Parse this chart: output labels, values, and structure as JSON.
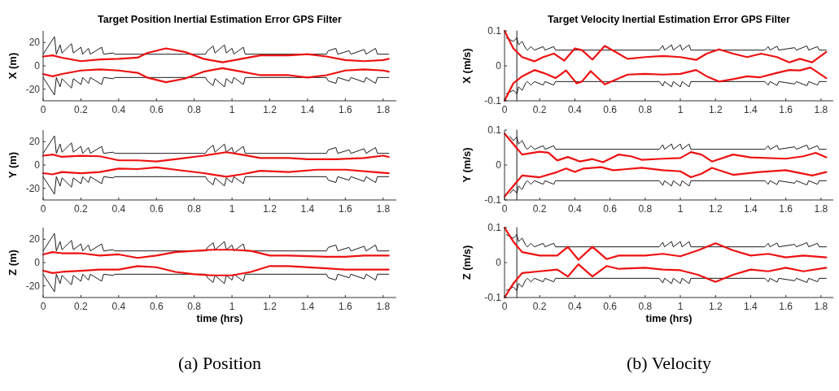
{
  "chart_data": [
    {
      "type": "line",
      "title": "Target Position Inertial Estimation Error GPS Filter",
      "ylabel": "X (m)",
      "xlim": [
        0,
        1.87
      ],
      "xticks": [
        0,
        0.2,
        0.4,
        0.6,
        0.8,
        1,
        1.2,
        1.4,
        1.6,
        1.8
      ],
      "ylim": [
        -30,
        30
      ],
      "yticks": [
        -20,
        0,
        20
      ],
      "series": [
        {
          "color": "#000000",
          "x": [
            0,
            0.06,
            0.07,
            0.09,
            0.1,
            0.15,
            0.16,
            0.2,
            0.21,
            0.24,
            0.25,
            0.31,
            0.32,
            0.37,
            0.38,
            0.86,
            0.87,
            0.9,
            0.91,
            0.96,
            0.97,
            1.0,
            1.01,
            1.06,
            1.07,
            1.5,
            1.51,
            1.55,
            1.56,
            1.62,
            1.63,
            1.7,
            1.71,
            1.76,
            1.77,
            1.83
          ],
          "values": [
            10,
            25,
            10,
            18,
            11,
            19,
            11,
            16,
            10,
            15,
            10,
            16,
            10,
            11,
            10,
            10,
            13,
            17,
            11,
            18,
            11,
            15,
            10,
            16,
            10,
            10,
            13,
            15,
            10,
            13,
            10,
            14,
            10,
            15,
            10,
            10
          ]
        },
        {
          "color": "#000000",
          "x": [
            0,
            0.06,
            0.07,
            0.09,
            0.1,
            0.15,
            0.16,
            0.2,
            0.21,
            0.24,
            0.25,
            0.31,
            0.32,
            0.37,
            0.38,
            0.86,
            0.87,
            0.9,
            0.91,
            0.96,
            0.97,
            1.0,
            1.01,
            1.06,
            1.07,
            1.5,
            1.51,
            1.55,
            1.56,
            1.62,
            1.63,
            1.7,
            1.71,
            1.76,
            1.77,
            1.83
          ],
          "values": [
            -10,
            -25,
            -10,
            -18,
            -11,
            -19,
            -11,
            -16,
            -10,
            -15,
            -10,
            -16,
            -10,
            -11,
            -10,
            -10,
            -13,
            -17,
            -11,
            -18,
            -11,
            -15,
            -10,
            -16,
            -10,
            -10,
            -13,
            -15,
            -10,
            -13,
            -10,
            -14,
            -10,
            -15,
            -10,
            -10
          ]
        },
        {
          "color": "#ee1111",
          "x": [
            0,
            0.05,
            0.1,
            0.2,
            0.3,
            0.4,
            0.5,
            0.55,
            0.65,
            0.75,
            0.85,
            0.95,
            1.05,
            1.15,
            1.3,
            1.4,
            1.5,
            1.6,
            1.7,
            1.8,
            1.83
          ],
          "values": [
            8,
            9,
            7,
            4,
            5.5,
            6,
            7,
            11,
            15,
            12,
            6,
            3,
            6,
            9,
            9,
            10,
            8,
            5,
            4,
            5,
            6
          ]
        },
        {
          "color": "#ee1111",
          "x": [
            0,
            0.05,
            0.1,
            0.2,
            0.3,
            0.4,
            0.5,
            0.55,
            0.65,
            0.75,
            0.85,
            0.95,
            1.05,
            1.15,
            1.3,
            1.4,
            1.5,
            1.6,
            1.7,
            1.8,
            1.83
          ],
          "values": [
            -7,
            -9,
            -7,
            -4,
            -3,
            -4,
            -6,
            -10,
            -14,
            -11,
            -5,
            -2,
            -5,
            -8,
            -8,
            -10,
            -8,
            -4,
            -3,
            -4,
            -5
          ]
        }
      ]
    },
    {
      "type": "line",
      "ylabel": "Y (m)",
      "xlim": [
        0,
        1.87
      ],
      "xticks": [
        0,
        0.2,
        0.4,
        0.6,
        0.8,
        1,
        1.2,
        1.4,
        1.6,
        1.8
      ],
      "ylim": [
        -30,
        30
      ],
      "yticks": [
        -20,
        0,
        20
      ],
      "series": [
        {
          "color": "#000000",
          "x": [
            0,
            0.06,
            0.07,
            0.09,
            0.1,
            0.15,
            0.16,
            0.2,
            0.21,
            0.24,
            0.25,
            0.31,
            0.32,
            0.37,
            0.38,
            0.86,
            0.87,
            0.9,
            0.91,
            0.96,
            0.97,
            1.0,
            1.01,
            1.06,
            1.07,
            1.5,
            1.51,
            1.55,
            1.56,
            1.62,
            1.63,
            1.7,
            1.71,
            1.76,
            1.77,
            1.83
          ],
          "values": [
            10,
            25,
            10,
            18,
            11,
            19,
            11,
            16,
            10,
            15,
            10,
            16,
            10,
            11,
            10,
            10,
            13,
            17,
            11,
            18,
            11,
            15,
            10,
            16,
            10,
            10,
            13,
            15,
            10,
            13,
            10,
            14,
            10,
            15,
            10,
            10
          ]
        },
        {
          "color": "#000000",
          "x": [
            0,
            0.06,
            0.07,
            0.09,
            0.1,
            0.15,
            0.16,
            0.2,
            0.21,
            0.24,
            0.25,
            0.31,
            0.32,
            0.37,
            0.38,
            0.86,
            0.87,
            0.9,
            0.91,
            0.96,
            0.97,
            1.0,
            1.01,
            1.06,
            1.07,
            1.5,
            1.51,
            1.55,
            1.56,
            1.62,
            1.63,
            1.7,
            1.71,
            1.76,
            1.77,
            1.83
          ],
          "values": [
            -10,
            -25,
            -10,
            -18,
            -11,
            -19,
            -11,
            -16,
            -10,
            -15,
            -10,
            -16,
            -10,
            -11,
            -10,
            -10,
            -13,
            -17,
            -11,
            -18,
            -11,
            -15,
            -10,
            -16,
            -10,
            -10,
            -13,
            -15,
            -10,
            -13,
            -10,
            -14,
            -10,
            -15,
            -10,
            -10
          ]
        },
        {
          "color": "#ee1111",
          "x": [
            0,
            0.05,
            0.1,
            0.2,
            0.3,
            0.4,
            0.5,
            0.6,
            0.7,
            0.85,
            0.97,
            1.05,
            1.15,
            1.3,
            1.4,
            1.55,
            1.7,
            1.8,
            1.83
          ],
          "values": [
            8,
            9,
            7,
            8,
            7.5,
            4,
            4,
            3,
            5,
            8,
            11,
            9,
            6,
            6,
            5,
            5,
            6,
            8,
            7
          ]
        },
        {
          "color": "#ee1111",
          "x": [
            0,
            0.05,
            0.1,
            0.2,
            0.3,
            0.4,
            0.5,
            0.6,
            0.7,
            0.85,
            0.97,
            1.05,
            1.15,
            1.3,
            1.45,
            1.6,
            1.75,
            1.83
          ],
          "values": [
            -7,
            -8,
            -6,
            -7,
            -6,
            -3,
            -3.5,
            -2,
            -4,
            -7,
            -10,
            -8,
            -5,
            -6,
            -4,
            -4,
            -6,
            -7
          ]
        }
      ]
    },
    {
      "type": "line",
      "ylabel": "Z (m)",
      "xlabel": "time (hrs)",
      "annotations": [
        "(a) Position"
      ],
      "xlim": [
        0,
        1.87
      ],
      "xticks": [
        0,
        0.2,
        0.4,
        0.6,
        0.8,
        1,
        1.2,
        1.4,
        1.6,
        1.8
      ],
      "ylim": [
        -30,
        30
      ],
      "yticks": [
        -20,
        0,
        20
      ],
      "series": [
        {
          "color": "#000000",
          "x": [
            0,
            0.06,
            0.07,
            0.09,
            0.1,
            0.15,
            0.16,
            0.2,
            0.21,
            0.24,
            0.25,
            0.31,
            0.32,
            0.37,
            0.38,
            0.86,
            0.87,
            0.9,
            0.91,
            0.96,
            0.97,
            1.0,
            1.01,
            1.06,
            1.07,
            1.5,
            1.51,
            1.55,
            1.56,
            1.62,
            1.63,
            1.7,
            1.71,
            1.76,
            1.77,
            1.83
          ],
          "values": [
            10,
            25,
            10,
            18,
            11,
            19,
            11,
            16,
            10,
            15,
            10,
            16,
            10,
            11,
            10,
            10,
            13,
            17,
            11,
            18,
            11,
            15,
            10,
            16,
            10,
            10,
            13,
            15,
            10,
            13,
            10,
            14,
            10,
            15,
            10,
            10
          ]
        },
        {
          "color": "#000000",
          "x": [
            0,
            0.06,
            0.07,
            0.09,
            0.1,
            0.15,
            0.16,
            0.2,
            0.21,
            0.24,
            0.25,
            0.31,
            0.32,
            0.37,
            0.38,
            0.86,
            0.87,
            0.9,
            0.91,
            0.96,
            0.97,
            1.0,
            1.01,
            1.06,
            1.07,
            1.5,
            1.51,
            1.55,
            1.56,
            1.62,
            1.63,
            1.7,
            1.71,
            1.76,
            1.77,
            1.83
          ],
          "values": [
            -10,
            -25,
            -10,
            -18,
            -11,
            -19,
            -11,
            -16,
            -10,
            -15,
            -10,
            -16,
            -10,
            -11,
            -10,
            -10,
            -13,
            -17,
            -11,
            -18,
            -11,
            -15,
            -10,
            -16,
            -10,
            -10,
            -13,
            -15,
            -10,
            -13,
            -10,
            -14,
            -10,
            -15,
            -10,
            -10
          ]
        },
        {
          "color": "#ee1111",
          "x": [
            0,
            0.05,
            0.1,
            0.2,
            0.3,
            0.4,
            0.5,
            0.6,
            0.7,
            0.8,
            0.9,
            1.0,
            1.1,
            1.2,
            1.3,
            1.5,
            1.6,
            1.7,
            1.83
          ],
          "values": [
            7,
            9,
            8,
            8,
            6,
            7,
            4,
            6,
            9,
            10,
            11,
            11,
            10,
            6,
            6,
            5,
            5,
            6,
            6
          ]
        },
        {
          "color": "#ee1111",
          "x": [
            0,
            0.05,
            0.1,
            0.2,
            0.3,
            0.4,
            0.5,
            0.6,
            0.7,
            0.8,
            0.9,
            1.0,
            1.1,
            1.2,
            1.3,
            1.5,
            1.6,
            1.7,
            1.83
          ],
          "values": [
            -7,
            -9,
            -8,
            -7,
            -6,
            -6,
            -3,
            -4,
            -8,
            -10,
            -11,
            -11,
            -8,
            -3,
            -3,
            -5,
            -6,
            -6,
            -6
          ]
        }
      ]
    },
    {
      "type": "line",
      "title": "Target Velocity Inertial Estimation Error GPS Filter",
      "ylabel": "X (m/s)",
      "xlim": [
        0,
        1.87
      ],
      "xticks": [
        0,
        0.2,
        0.4,
        0.6,
        0.8,
        1,
        1.2,
        1.4,
        1.6,
        1.8
      ],
      "ylim": [
        -0.1,
        0.1
      ],
      "yticks": [
        -0.1,
        0,
        0.1
      ],
      "series": [
        {
          "color": "#000000",
          "x": [
            0.07,
            0.07
          ],
          "values": [
            -0.1,
            0.1
          ]
        },
        {
          "color": "#000000",
          "x": [
            0.01,
            0.05,
            0.07,
            0.08,
            0.1,
            0.12,
            0.13,
            0.15,
            0.17,
            0.22,
            0.23,
            0.28,
            0.29,
            0.88,
            0.9,
            0.91,
            0.95,
            0.96,
            1.0,
            1.01,
            1.05,
            1.06,
            1.48,
            1.5,
            1.51,
            1.55,
            1.56,
            1.65,
            1.66,
            1.72,
            1.73,
            1.78,
            1.79,
            1.83
          ],
          "values": [
            0.08,
            0.07,
            0.08,
            0.06,
            0.07,
            0.05,
            0.045,
            0.055,
            0.045,
            0.055,
            0.045,
            0.055,
            0.045,
            0.045,
            0.058,
            0.045,
            0.06,
            0.045,
            0.06,
            0.045,
            0.06,
            0.045,
            0.045,
            0.055,
            0.045,
            0.056,
            0.045,
            0.052,
            0.045,
            0.057,
            0.045,
            0.055,
            0.045,
            0.045
          ]
        },
        {
          "color": "#000000",
          "x": [
            0.01,
            0.05,
            0.07,
            0.08,
            0.1,
            0.12,
            0.13,
            0.15,
            0.17,
            0.22,
            0.23,
            0.28,
            0.29,
            0.88,
            0.9,
            0.91,
            0.95,
            0.96,
            1.0,
            1.01,
            1.05,
            1.06,
            1.48,
            1.5,
            1.51,
            1.55,
            1.56,
            1.65,
            1.66,
            1.72,
            1.73,
            1.78,
            1.79,
            1.83
          ],
          "values": [
            -0.08,
            -0.07,
            -0.08,
            -0.06,
            -0.07,
            -0.05,
            -0.045,
            -0.055,
            -0.045,
            -0.055,
            -0.045,
            -0.055,
            -0.045,
            -0.045,
            -0.058,
            -0.045,
            -0.06,
            -0.045,
            -0.06,
            -0.045,
            -0.06,
            -0.045,
            -0.045,
            -0.055,
            -0.045,
            -0.056,
            -0.045,
            -0.052,
            -0.045,
            -0.057,
            -0.045,
            -0.055,
            -0.045,
            -0.045
          ]
        },
        {
          "color": "#ee1111",
          "x": [
            0,
            0.05,
            0.1,
            0.17,
            0.22,
            0.28,
            0.34,
            0.4,
            0.44,
            0.5,
            0.57,
            0.63,
            0.7,
            0.8,
            0.9,
            1.0,
            1.09,
            1.15,
            1.22,
            1.3,
            1.38,
            1.46,
            1.55,
            1.62,
            1.68,
            1.75,
            1.83
          ],
          "values": [
            0.1,
            0.05,
            0.025,
            0.013,
            0.025,
            0.035,
            0.015,
            0.05,
            0.045,
            0.018,
            0.057,
            0.04,
            0.02,
            0.025,
            0.028,
            0.025,
            0.017,
            0.035,
            0.047,
            0.035,
            0.025,
            0.035,
            0.025,
            0.01,
            0.02,
            0.01,
            0.04
          ]
        },
        {
          "color": "#ee1111",
          "x": [
            0,
            0.05,
            0.1,
            0.17,
            0.22,
            0.29,
            0.35,
            0.41,
            0.44,
            0.49,
            0.57,
            0.63,
            0.7,
            0.8,
            0.9,
            1.0,
            1.09,
            1.15,
            1.22,
            1.3,
            1.38,
            1.45,
            1.55,
            1.62,
            1.68,
            1.74,
            1.83
          ],
          "values": [
            -0.1,
            -0.05,
            -0.03,
            -0.012,
            -0.02,
            -0.035,
            -0.013,
            -0.05,
            -0.045,
            -0.015,
            -0.053,
            -0.04,
            -0.025,
            -0.023,
            -0.025,
            -0.023,
            -0.012,
            -0.03,
            -0.045,
            -0.038,
            -0.03,
            -0.033,
            -0.02,
            -0.012,
            -0.013,
            -0.005,
            -0.035
          ]
        }
      ]
    },
    {
      "type": "line",
      "ylabel": "Y (m/s)",
      "xlim": [
        0,
        1.87
      ],
      "xticks": [
        0,
        0.2,
        0.4,
        0.6,
        0.8,
        1,
        1.2,
        1.4,
        1.6,
        1.8
      ],
      "ylim": [
        -0.1,
        0.1
      ],
      "yticks": [
        -0.1,
        0,
        0.1
      ],
      "series": [
        {
          "color": "#000000",
          "x": [
            0.07,
            0.07
          ],
          "values": [
            -0.1,
            0.1
          ]
        },
        {
          "color": "#000000",
          "x": [
            0.03,
            0.05,
            0.07,
            0.08,
            0.1,
            0.12,
            0.13,
            0.15,
            0.17,
            0.22,
            0.23,
            0.28,
            0.29,
            0.88,
            0.9,
            0.91,
            0.95,
            0.96,
            1.0,
            1.01,
            1.05,
            1.06,
            1.48,
            1.5,
            1.51,
            1.55,
            1.56,
            1.65,
            1.66,
            1.72,
            1.73,
            1.78,
            1.79,
            1.83
          ],
          "values": [
            0.082,
            0.07,
            0.08,
            0.06,
            0.07,
            0.05,
            0.045,
            0.055,
            0.045,
            0.055,
            0.045,
            0.055,
            0.045,
            0.045,
            0.058,
            0.045,
            0.06,
            0.045,
            0.06,
            0.045,
            0.06,
            0.045,
            0.045,
            0.055,
            0.045,
            0.056,
            0.045,
            0.052,
            0.045,
            0.057,
            0.045,
            0.055,
            0.045,
            0.045
          ]
        },
        {
          "color": "#000000",
          "x": [
            0.03,
            0.05,
            0.07,
            0.08,
            0.1,
            0.12,
            0.13,
            0.15,
            0.17,
            0.22,
            0.23,
            0.28,
            0.29,
            0.88,
            0.9,
            0.91,
            0.95,
            0.96,
            1.0,
            1.01,
            1.05,
            1.06,
            1.48,
            1.5,
            1.51,
            1.55,
            1.56,
            1.65,
            1.66,
            1.72,
            1.73,
            1.78,
            1.79,
            1.83
          ],
          "values": [
            -0.082,
            -0.07,
            -0.08,
            -0.06,
            -0.07,
            -0.05,
            -0.045,
            -0.055,
            -0.045,
            -0.055,
            -0.045,
            -0.055,
            -0.045,
            -0.045,
            -0.058,
            -0.045,
            -0.06,
            -0.045,
            -0.06,
            -0.045,
            -0.06,
            -0.045,
            -0.045,
            -0.055,
            -0.045,
            -0.056,
            -0.045,
            -0.052,
            -0.045,
            -0.057,
            -0.045,
            -0.055,
            -0.045,
            -0.045
          ]
        },
        {
          "color": "#ee1111",
          "x": [
            0,
            0.05,
            0.1,
            0.2,
            0.25,
            0.3,
            0.36,
            0.43,
            0.5,
            0.56,
            0.65,
            0.72,
            0.78,
            0.9,
            1.0,
            1.06,
            1.12,
            1.18,
            1.3,
            1.4,
            1.6,
            1.7,
            1.77,
            1.83
          ],
          "values": [
            0.09,
            0.06,
            0.03,
            0.038,
            0.035,
            0.013,
            0.023,
            0.01,
            0.017,
            0.008,
            0.03,
            0.025,
            0.015,
            0.018,
            0.02,
            0.037,
            0.03,
            0.01,
            0.03,
            0.022,
            0.018,
            0.025,
            0.035,
            0.022
          ]
        },
        {
          "color": "#ee1111",
          "x": [
            0,
            0.05,
            0.1,
            0.2,
            0.3,
            0.35,
            0.4,
            0.45,
            0.55,
            0.62,
            0.78,
            0.9,
            1.0,
            1.06,
            1.12,
            1.18,
            1.3,
            1.45,
            1.6,
            1.75,
            1.83
          ],
          "values": [
            -0.09,
            -0.06,
            -0.03,
            -0.035,
            -0.02,
            -0.01,
            -0.02,
            -0.01,
            -0.006,
            -0.015,
            -0.008,
            -0.015,
            -0.018,
            -0.035,
            -0.025,
            -0.008,
            -0.028,
            -0.02,
            -0.015,
            -0.03,
            -0.02
          ]
        }
      ]
    },
    {
      "type": "line",
      "ylabel": "Z (m/s)",
      "xlabel": "time (hrs)",
      "annotations": [
        "(b) Velocity"
      ],
      "xlim": [
        0,
        1.87
      ],
      "xticks": [
        0,
        0.2,
        0.4,
        0.6,
        0.8,
        1,
        1.2,
        1.4,
        1.6,
        1.8
      ],
      "ylim": [
        -0.1,
        0.1
      ],
      "yticks": [
        -0.1,
        0,
        0.1
      ],
      "series": [
        {
          "color": "#000000",
          "x": [
            0.07,
            0.07
          ],
          "values": [
            -0.1,
            0.1
          ]
        },
        {
          "color": "#000000",
          "x": [
            0.01,
            0.05,
            0.07,
            0.08,
            0.1,
            0.12,
            0.13,
            0.15,
            0.17,
            0.22,
            0.23,
            0.28,
            0.29,
            0.88,
            0.9,
            0.91,
            0.95,
            0.96,
            1.0,
            1.01,
            1.05,
            1.06,
            1.48,
            1.5,
            1.51,
            1.55,
            1.56,
            1.65,
            1.66,
            1.72,
            1.73,
            1.78,
            1.79,
            1.83
          ],
          "values": [
            0.08,
            0.07,
            0.08,
            0.06,
            0.07,
            0.05,
            0.045,
            0.055,
            0.045,
            0.055,
            0.045,
            0.055,
            0.045,
            0.045,
            0.058,
            0.045,
            0.06,
            0.045,
            0.06,
            0.045,
            0.06,
            0.045,
            0.045,
            0.055,
            0.045,
            0.056,
            0.045,
            0.052,
            0.045,
            0.057,
            0.045,
            0.055,
            0.045,
            0.045
          ]
        },
        {
          "color": "#000000",
          "x": [
            0.01,
            0.05,
            0.07,
            0.08,
            0.1,
            0.12,
            0.13,
            0.15,
            0.17,
            0.22,
            0.23,
            0.28,
            0.29,
            0.88,
            0.9,
            0.91,
            0.95,
            0.96,
            1.0,
            1.01,
            1.05,
            1.06,
            1.48,
            1.5,
            1.51,
            1.55,
            1.56,
            1.65,
            1.66,
            1.72,
            1.73,
            1.78,
            1.79,
            1.83
          ],
          "values": [
            -0.08,
            -0.07,
            -0.08,
            -0.06,
            -0.07,
            -0.05,
            -0.045,
            -0.055,
            -0.045,
            -0.055,
            -0.045,
            -0.055,
            -0.045,
            -0.045,
            -0.058,
            -0.045,
            -0.06,
            -0.045,
            -0.06,
            -0.045,
            -0.06,
            -0.045,
            -0.045,
            -0.055,
            -0.045,
            -0.056,
            -0.045,
            -0.052,
            -0.045,
            -0.057,
            -0.045,
            -0.055,
            -0.045,
            -0.045
          ]
        },
        {
          "color": "#ee1111",
          "x": [
            0,
            0.05,
            0.1,
            0.2,
            0.3,
            0.36,
            0.42,
            0.5,
            0.58,
            0.65,
            0.8,
            0.9,
            1.0,
            1.1,
            1.2,
            1.3,
            1.4,
            1.5,
            1.6,
            1.7,
            1.83
          ],
          "values": [
            0.1,
            0.06,
            0.03,
            0.02,
            0.02,
            0.045,
            0.008,
            0.045,
            0.01,
            0.02,
            0.02,
            0.025,
            0.018,
            0.035,
            0.055,
            0.035,
            0.02,
            0.025,
            0.015,
            0.02,
            0.015
          ]
        },
        {
          "color": "#ee1111",
          "x": [
            0,
            0.05,
            0.1,
            0.2,
            0.3,
            0.36,
            0.42,
            0.5,
            0.58,
            0.65,
            0.8,
            0.9,
            1.0,
            1.1,
            1.2,
            1.3,
            1.4,
            1.5,
            1.6,
            1.7,
            1.83
          ],
          "values": [
            -0.1,
            -0.06,
            -0.03,
            -0.025,
            -0.02,
            -0.04,
            -0.005,
            -0.04,
            -0.01,
            -0.018,
            -0.015,
            -0.02,
            -0.022,
            -0.035,
            -0.055,
            -0.035,
            -0.02,
            -0.025,
            -0.015,
            -0.025,
            -0.015
          ]
        }
      ]
    }
  ]
}
